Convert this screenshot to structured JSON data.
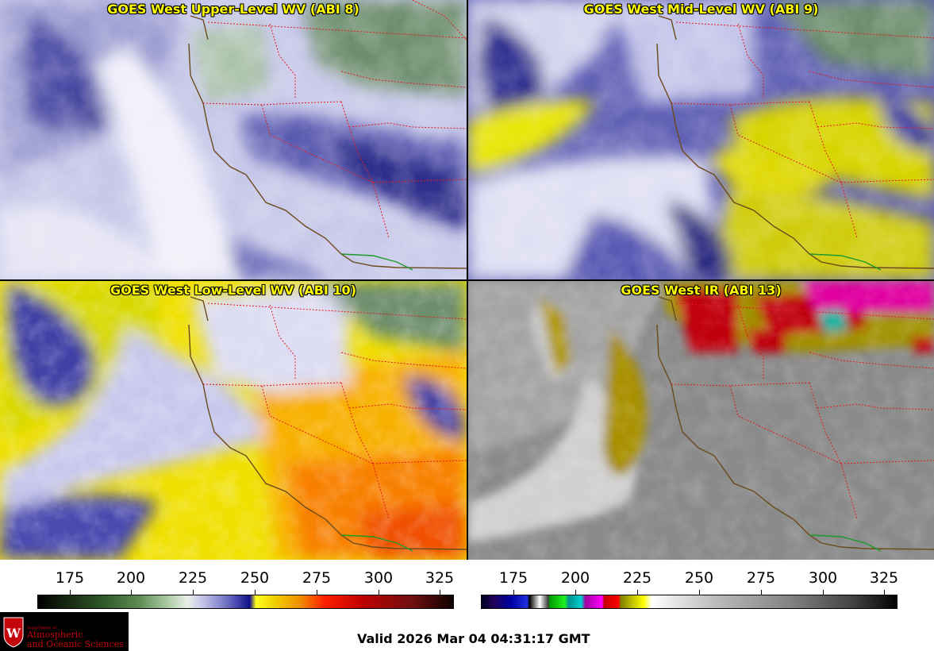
{
  "panels": [
    {
      "title": "GOES West Upper-Level WV (ABI 8)"
    },
    {
      "title": "GOES West Mid-Level WV (ABI 9)"
    },
    {
      "title": "GOES West Low-Level WV (ABI 10)"
    },
    {
      "title": "GOES West IR (ABI 13)"
    }
  ],
  "colorbars": {
    "wv": {
      "ticks": [
        "175",
        "200",
        "225",
        "250",
        "275",
        "300",
        "325"
      ]
    },
    "ir": {
      "ticks": [
        "175",
        "200",
        "225",
        "250",
        "275",
        "300",
        "325"
      ]
    }
  },
  "valid_text": "Valid 2026 Mar 04 04:31:17 GMT",
  "logo": {
    "dept_small": "Department of",
    "line1": "Atmospheric",
    "line2": "and Oceanic Sciences"
  },
  "colors": {
    "state_border": "#e31a1c",
    "coast": "#6b4a1a",
    "mexico_border": "#1c9a2a",
    "logo_red": "#c5050c"
  }
}
